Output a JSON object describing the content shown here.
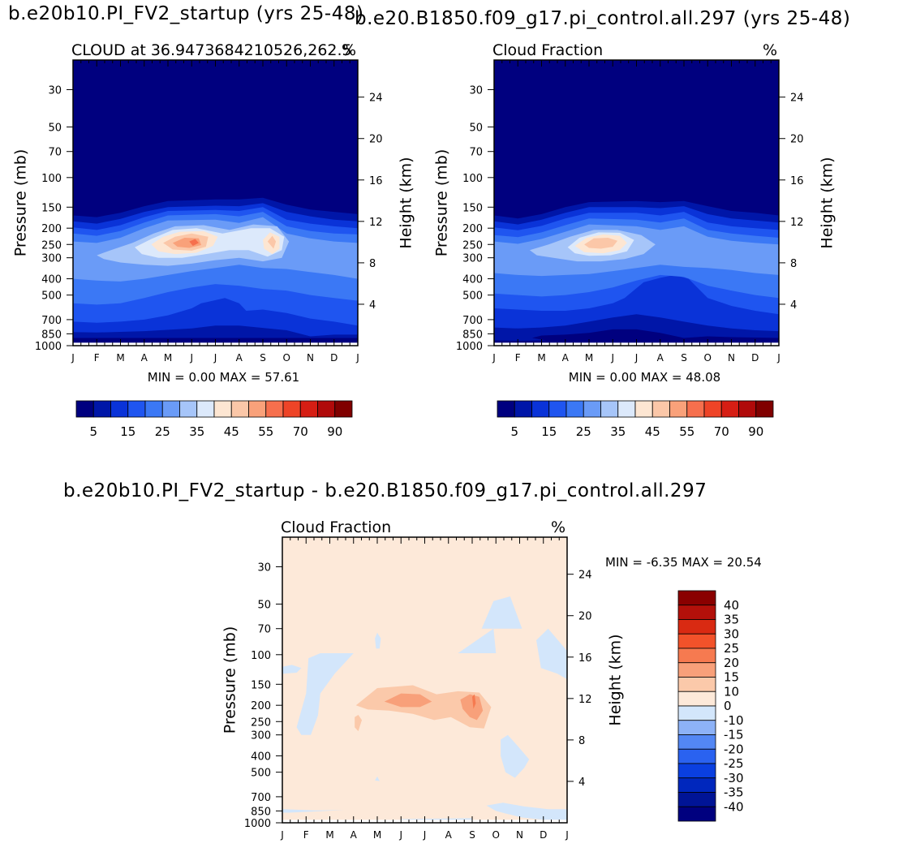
{
  "titles": {
    "left": "b.e20b10.PI_FV2_startup (yrs 25-48)",
    "right": "b.e20.B1850.f09_g17.pi_control.all.297 (yrs 25-48)",
    "diff": "b.e20b10.PI_FV2_startup - b.e20.B1850.f09_g17.pi_control.all.297"
  },
  "colors": {
    "palette_abs": [
      "#00007f",
      "#0016a8",
      "#0a33d8",
      "#1f55f0",
      "#3b78f5",
      "#6a9bf7",
      "#a6c5f9",
      "#dce9fb",
      "#fde6d2",
      "#fbc7a8",
      "#f9a17a",
      "#f66f4d",
      "#ee4427",
      "#d61e14",
      "#b00a0a",
      "#800000"
    ],
    "palette_diff": [
      "#00007f",
      "#001496",
      "#0027bd",
      "#0a3fe0",
      "#2a62f0",
      "#5387f4",
      "#8db2f7",
      "#d3e6fb",
      "#fde9d9",
      "#fbc9aa",
      "#f8a07a",
      "#f67a50",
      "#f2522a",
      "#d92a12",
      "#b3100a",
      "#8a0000"
    ]
  },
  "chart_data": [
    {
      "type": "contour",
      "panel": "left",
      "title_left": "CLOUD at 36.9473684210526,262.5",
      "title_right": "%",
      "ylabel": "Pressure (mb)",
      "y2label": "Height (km)",
      "xticks": [
        "J",
        "F",
        "M",
        "A",
        "M",
        "J",
        "J",
        "A",
        "S",
        "O",
        "N",
        "D",
        "J"
      ],
      "yticks": [
        30,
        50,
        70,
        100,
        150,
        200,
        250,
        300,
        400,
        500,
        700,
        850,
        1000
      ],
      "y2ticks": [
        4,
        8,
        12,
        16,
        20,
        24
      ],
      "ylim": [
        20,
        1000
      ],
      "stats": "MIN =    0.00  MAX =   57.61",
      "min": 0.0,
      "max": 57.61,
      "colorbar_labels": [
        "5",
        "15",
        "25",
        "35",
        "45",
        "55",
        "70",
        "90"
      ],
      "peak_values": [
        {
          "month": "May-Jun",
          "pressure_mb": 230,
          "value": 57.61
        },
        {
          "month": "Sep",
          "pressure_mb": 230,
          "value": 50
        }
      ]
    },
    {
      "type": "contour",
      "panel": "right",
      "title_left": "Cloud Fraction",
      "title_right": "%",
      "ylabel": "Pressure (mb)",
      "y2label": "Height (km)",
      "xticks": [
        "J",
        "F",
        "M",
        "A",
        "M",
        "J",
        "J",
        "A",
        "S",
        "O",
        "N",
        "D",
        "J"
      ],
      "yticks": [
        30,
        50,
        70,
        100,
        150,
        200,
        250,
        300,
        400,
        500,
        700,
        850,
        1000
      ],
      "y2ticks": [
        4,
        8,
        12,
        16,
        20,
        24
      ],
      "ylim": [
        20,
        1000
      ],
      "stats": "MIN =    0.00  MAX =   48.08",
      "min": 0.0,
      "max": 48.08,
      "colorbar_labels": [
        "5",
        "15",
        "25",
        "35",
        "45",
        "55",
        "70",
        "90"
      ],
      "peak_values": [
        {
          "month": "May-Jun",
          "pressure_mb": 240,
          "value": 48.08
        }
      ]
    },
    {
      "type": "contour",
      "panel": "diff",
      "title_left": "Cloud Fraction",
      "title_right": "%",
      "ylabel": "Pressure (mb)",
      "y2label": "Height (km)",
      "xticks": [
        "J",
        "F",
        "M",
        "A",
        "M",
        "J",
        "J",
        "A",
        "S",
        "O",
        "N",
        "D",
        "J"
      ],
      "yticks": [
        30,
        50,
        70,
        100,
        150,
        200,
        250,
        300,
        400,
        500,
        700,
        850,
        1000
      ],
      "y2ticks": [
        4,
        8,
        12,
        16,
        20,
        24
      ],
      "ylim": [
        20,
        1000
      ],
      "stats": "MIN =   -6.35  MAX =   20.54",
      "min": -6.35,
      "max": 20.54,
      "colorbar_labels": [
        "40",
        "35",
        "30",
        "25",
        "20",
        "15",
        "10",
        "0",
        "-10",
        "-15",
        "-20",
        "-25",
        "-30",
        "-35",
        "-40"
      ]
    }
  ]
}
